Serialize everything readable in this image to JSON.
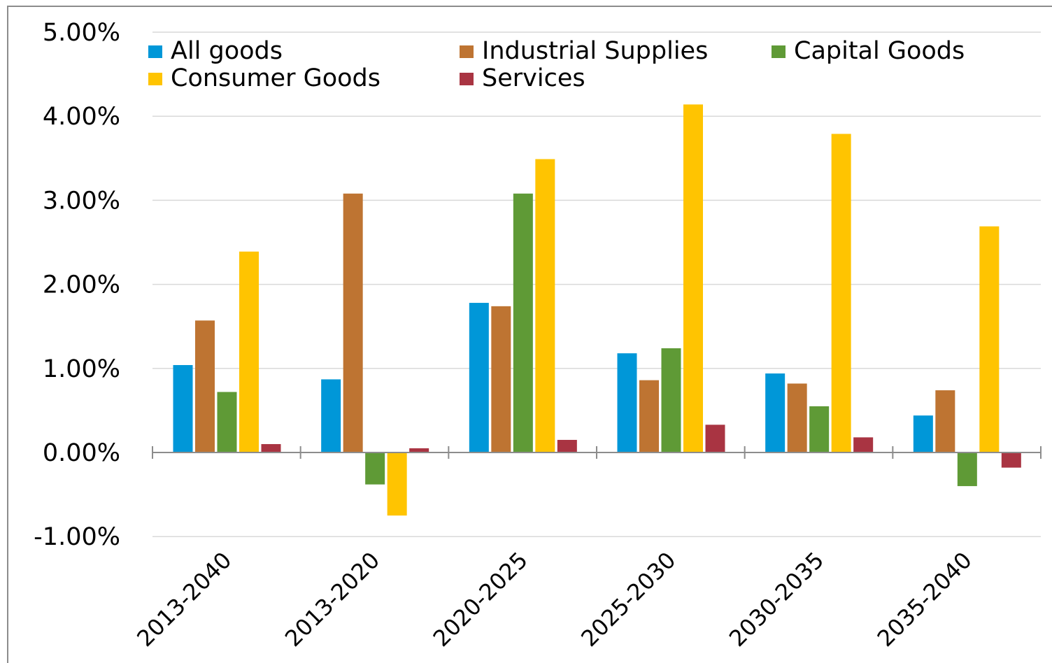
{
  "chart_data": {
    "type": "bar",
    "title": "",
    "xlabel": "",
    "ylabel": "",
    "categories": [
      "2013-2040",
      "2013-2020",
      "2020-2025",
      "2025-2030",
      "2030-2035",
      "2035-2040"
    ],
    "series": [
      {
        "name": "All goods",
        "color": "#0097D8",
        "values": [
          1.04,
          0.87,
          1.78,
          1.18,
          0.94,
          0.44
        ]
      },
      {
        "name": "Industrial Supplies",
        "color": "#BE7432",
        "values": [
          1.57,
          3.08,
          1.74,
          0.86,
          0.82,
          0.74
        ]
      },
      {
        "name": "Capital Goods",
        "color": "#5F9A36",
        "values": [
          0.72,
          -0.38,
          3.08,
          1.24,
          0.55,
          -0.4
        ]
      },
      {
        "name": "Consumer Goods",
        "color": "#FFC401",
        "values": [
          2.39,
          -0.75,
          3.49,
          4.14,
          3.79,
          2.69
        ]
      },
      {
        "name": "Services",
        "color": "#A93442",
        "values": [
          0.1,
          0.05,
          0.15,
          0.33,
          0.18,
          -0.18
        ]
      }
    ],
    "y_ticks": [
      "5.00%",
      "4.00%",
      "3.00%",
      "2.00%",
      "1.00%",
      "0.00%",
      "-1.00%"
    ],
    "ylim": [
      -1,
      5
    ],
    "grid": true,
    "legend_position": "top"
  }
}
